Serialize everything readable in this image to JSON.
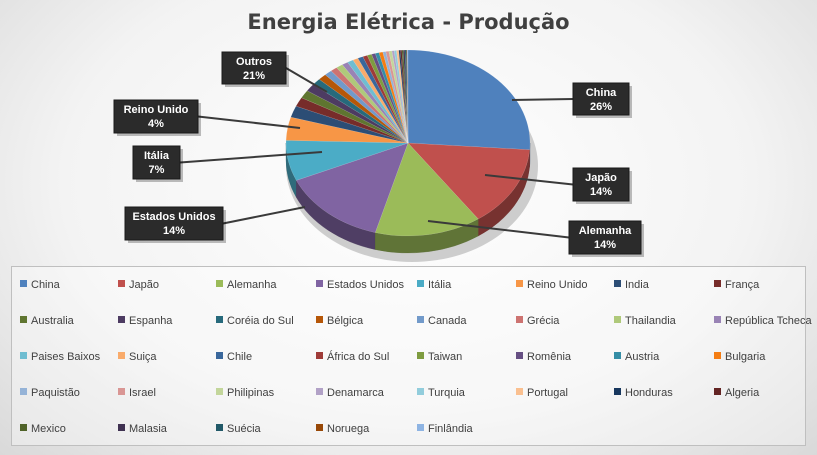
{
  "chart_data": {
    "type": "pie",
    "title": "Energia Elétrica - Produção",
    "slices": [
      {
        "name": "China",
        "value": 26,
        "color": "#4F81BD"
      },
      {
        "name": "Japão",
        "value": 14,
        "color": "#C0504D"
      },
      {
        "name": "Alemanha",
        "value": 14,
        "color": "#9BBB59"
      },
      {
        "name": "Estados Unidos",
        "value": 14,
        "color": "#8064A2"
      },
      {
        "name": "Itália",
        "value": 7,
        "color": "#4BACC6"
      },
      {
        "name": "Reino Unido",
        "value": 4,
        "color": "#F79646"
      },
      {
        "name": "India",
        "value": 2.0,
        "color": "#2C4D75"
      },
      {
        "name": "França",
        "value": 1.6,
        "color": "#772C2A"
      },
      {
        "name": "Australia",
        "value": 1.4,
        "color": "#5F7530"
      },
      {
        "name": "Espanha",
        "value": 1.3,
        "color": "#4D3B62"
      },
      {
        "name": "Coréia do Sul",
        "value": 1.2,
        "color": "#276A7C"
      },
      {
        "name": "Bélgica",
        "value": 1.1,
        "color": "#B65708"
      },
      {
        "name": "Canada",
        "value": 1.0,
        "color": "#729ACA"
      },
      {
        "name": "Grécia",
        "value": 0.9,
        "color": "#CD7371"
      },
      {
        "name": "Thailandia",
        "value": 0.9,
        "color": "#AFC97A"
      },
      {
        "name": "República Tcheca",
        "value": 0.8,
        "color": "#9983B5"
      },
      {
        "name": "Paises Baixos",
        "value": 0.8,
        "color": "#6FBDD1"
      },
      {
        "name": "Suiça",
        "value": 0.7,
        "color": "#F9AB6B"
      },
      {
        "name": "Chile",
        "value": 0.7,
        "color": "#3A679C"
      },
      {
        "name": "Africa do Sul",
        "value": 0.6,
        "color": "#9F3B38"
      },
      {
        "name": "Taiwan",
        "value": 0.6,
        "color": "#7E9C40"
      },
      {
        "name": "Romênia",
        "value": 0.5,
        "color": "#664F83"
      },
      {
        "name": "Austria",
        "value": 0.5,
        "color": "#358EA6"
      },
      {
        "name": "Bulgaria",
        "value": 0.5,
        "color": "#F47D13"
      },
      {
        "name": "Paquistão",
        "value": 0.4,
        "color": "#95B3D7"
      },
      {
        "name": "Israel",
        "value": 0.4,
        "color": "#D99694"
      },
      {
        "name": "Philipinas",
        "value": 0.4,
        "color": "#C3D69B"
      },
      {
        "name": "Denamarca",
        "value": 0.3,
        "color": "#B2A2C7"
      },
      {
        "name": "Turquia",
        "value": 0.3,
        "color": "#92CDDC"
      },
      {
        "name": "Portugal",
        "value": 0.3,
        "color": "#FAC090"
      },
      {
        "name": "Honduras",
        "value": 0.2,
        "color": "#17375E"
      },
      {
        "name": "Algeria",
        "value": 0.2,
        "color": "#632423"
      },
      {
        "name": "Mexico",
        "value": 0.2,
        "color": "#4F6228"
      },
      {
        "name": "Malasia",
        "value": 0.2,
        "color": "#3F3151"
      },
      {
        "name": "Suécia",
        "value": 0.2,
        "color": "#215968"
      },
      {
        "name": "Noruega",
        "value": 0.1,
        "color": "#984807"
      },
      {
        "name": "Finlândia",
        "value": 0.1,
        "color": "#8EB4E3"
      }
    ],
    "data_labels": [
      {
        "series": "China",
        "text": "China\n26%"
      },
      {
        "series": "Japão",
        "text": "Japão\n14%"
      },
      {
        "series": "Alemanha",
        "text": "Alemanha\n14%"
      },
      {
        "series": "Estados Unidos",
        "text": "Estados Unidos\n14%"
      },
      {
        "series": "Itália",
        "text": "Itália\n7%"
      },
      {
        "series": "Reino Unido",
        "text": "Reino Unido\n4%"
      },
      {
        "series": "Outros",
        "text": "Outros\n21%"
      }
    ],
    "legend": {
      "placement": "bottom",
      "entries": [
        "China",
        "Japão",
        "Alemanha",
        "Estados Unidos",
        "Itália",
        "Reino Unido",
        "India",
        "França",
        "Australia",
        "Espanha",
        "Coréia do Sul",
        "Bélgica",
        "Canada",
        "Grécia",
        "Thailandia",
        "República Tcheca",
        "Paises Baixos",
        "Suiça",
        "Chile",
        "África do Sul",
        "Taiwan",
        "Romênia",
        "Austria",
        "Bulgaria",
        "Paquistão",
        "Israel",
        "Philipinas",
        "Denamarca",
        "Turquia",
        "Portugal",
        "Honduras",
        "Algeria",
        "Mexico",
        "Malasia",
        "Suécia",
        "Noruega",
        "Finlândia"
      ]
    },
    "style": "3d"
  }
}
